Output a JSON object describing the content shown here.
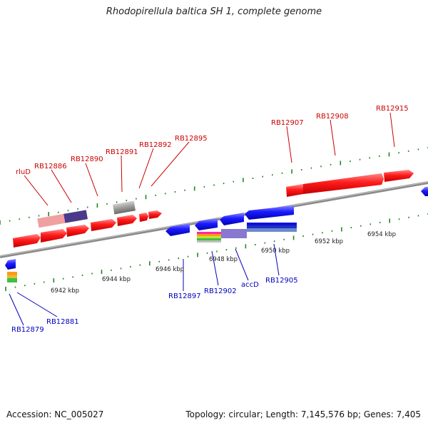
{
  "header": {
    "title": "Rhodopirellula baltica SH 1, complete genome"
  },
  "footer": {
    "accession": "Accession: NC_005027",
    "summary": "Topology: circular; Length: 7,145,576 bp; Genes: 7,405"
  },
  "colors": {
    "forward_label": "#cc0000",
    "reverse_label": "#0000bb",
    "forward_gene": "#ff0000",
    "reverse_gene": "#0000ff",
    "backbone": "#909090",
    "tick": "#228822"
  },
  "scale_labels": [
    "6942 kbp",
    "6944 kbp",
    "6946 kbp",
    "6948 kbp",
    "6950 kbp",
    "6952 kbp",
    "6954 kbp"
  ],
  "forward_gene_labels": [
    "rluD",
    "RB12886",
    "RB12890",
    "RB12891",
    "RB12892",
    "RB12895",
    "RB12907",
    "RB12908",
    "RB12915"
  ],
  "reverse_gene_labels": [
    "RB12879",
    "RB12881",
    "RB12897",
    "RB12902",
    "accD",
    "RB12905"
  ]
}
